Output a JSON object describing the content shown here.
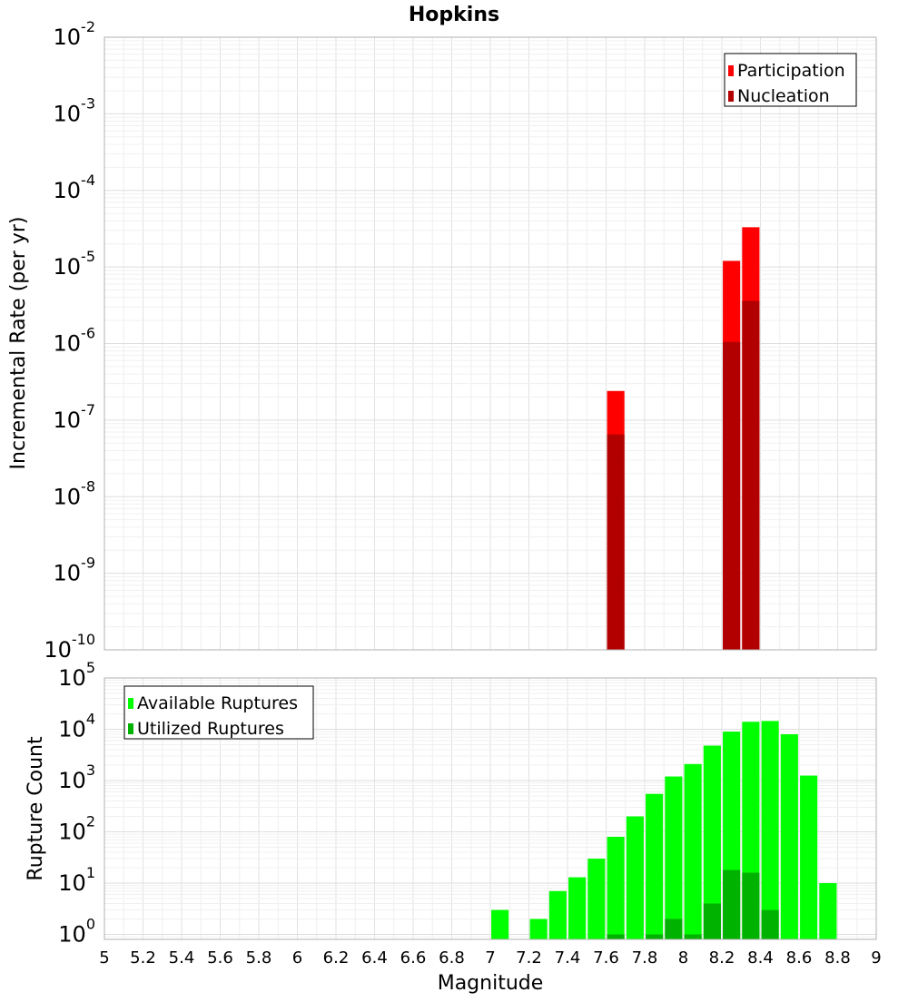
{
  "chart_data": [
    {
      "type": "bar",
      "title": "Hopkins",
      "xlabel": "",
      "ylabel": "Incremental Rate (per yr)",
      "y_scale": "log",
      "ylim": [
        1e-10,
        0.01
      ],
      "xlim": [
        5,
        9
      ],
      "x_tick_labels": [],
      "y_tick_exponents": [
        "-10",
        "-9",
        "-8",
        "-7",
        "-6",
        "-5",
        "-4",
        "-3",
        "-2"
      ],
      "y_tick_base": "10",
      "legend": {
        "placement": "top-right"
      },
      "grid": true,
      "bar_width": 0.09,
      "series": [
        {
          "name": "Participation",
          "color": "#ff0000",
          "points": [
            {
              "x": 7.65,
              "y": 2.4e-07
            },
            {
              "x": 8.25,
              "y": 1.2e-05
            },
            {
              "x": 8.35,
              "y": 3.3e-05
            }
          ]
        },
        {
          "name": "Nucleation",
          "color": "#b20000",
          "points": [
            {
              "x": 7.65,
              "y": 6.5e-08
            },
            {
              "x": 8.25,
              "y": 1.05e-06
            },
            {
              "x": 8.35,
              "y": 3.6e-06
            }
          ]
        }
      ]
    },
    {
      "type": "bar",
      "title": "",
      "xlabel": "Magnitude",
      "ylabel": "Rupture Count",
      "y_scale": "log",
      "ylim": [
        0.8,
        100000
      ],
      "xlim": [
        5,
        9
      ],
      "x_tick_labels": [
        "5",
        "5.2",
        "5.4",
        "5.6",
        "5.8",
        "6",
        "6.2",
        "6.4",
        "6.6",
        "6.8",
        "7",
        "7.2",
        "7.4",
        "7.6",
        "7.8",
        "8",
        "8.2",
        "8.4",
        "8.6",
        "8.8",
        "9"
      ],
      "y_tick_exponents": [
        "0",
        "1",
        "2",
        "3",
        "4",
        "5"
      ],
      "y_tick_base": "10",
      "legend": {
        "placement": "top-left"
      },
      "grid": true,
      "bar_width": 0.09,
      "series": [
        {
          "name": "Available Ruptures",
          "color": "#00ff00",
          "points": [
            {
              "x": 7.05,
              "y": 3
            },
            {
              "x": 7.25,
              "y": 2
            },
            {
              "x": 7.35,
              "y": 7
            },
            {
              "x": 7.45,
              "y": 13
            },
            {
              "x": 7.55,
              "y": 30
            },
            {
              "x": 7.65,
              "y": 80
            },
            {
              "x": 7.75,
              "y": 200
            },
            {
              "x": 7.85,
              "y": 550
            },
            {
              "x": 7.95,
              "y": 1200
            },
            {
              "x": 8.05,
              "y": 2100
            },
            {
              "x": 8.15,
              "y": 4800
            },
            {
              "x": 8.25,
              "y": 9000
            },
            {
              "x": 8.35,
              "y": 14000
            },
            {
              "x": 8.45,
              "y": 14500
            },
            {
              "x": 8.55,
              "y": 8000
            },
            {
              "x": 8.65,
              "y": 1250
            },
            {
              "x": 8.75,
              "y": 10
            }
          ]
        },
        {
          "name": "Utilized Ruptures",
          "color": "#00b200",
          "points": [
            {
              "x": 7.65,
              "y": 1
            },
            {
              "x": 7.85,
              "y": 1
            },
            {
              "x": 7.95,
              "y": 2
            },
            {
              "x": 8.05,
              "y": 1
            },
            {
              "x": 8.15,
              "y": 4
            },
            {
              "x": 8.25,
              "y": 18
            },
            {
              "x": 8.35,
              "y": 16
            },
            {
              "x": 8.45,
              "y": 3
            }
          ]
        }
      ]
    }
  ]
}
